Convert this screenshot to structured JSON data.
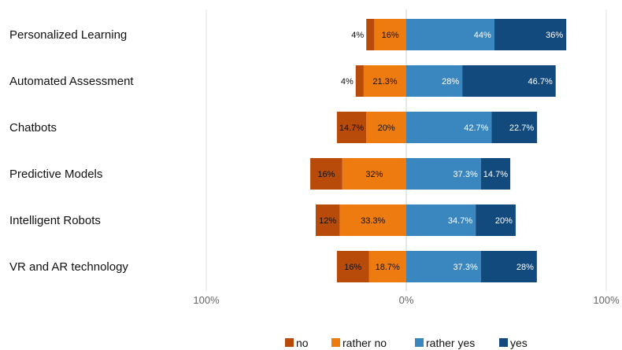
{
  "chart_data": {
    "type": "bar",
    "orientation": "horizontal-diverging",
    "categories": [
      "Personalized Learning",
      "Automated Assessment",
      "Chatbots",
      "Predictive Models",
      "Intelligent Robots",
      "VR and AR technology"
    ],
    "series": [
      {
        "name": "no",
        "side": "negative",
        "color": "#b84a0a",
        "values": [
          4,
          4,
          14.7,
          16,
          12,
          16
        ],
        "labels": [
          "4%",
          "4%",
          "14.7%",
          "16%",
          "12%",
          "16%"
        ]
      },
      {
        "name": "rather no",
        "side": "negative",
        "color": "#ee7b10",
        "values": [
          16,
          21.3,
          20,
          32,
          33.3,
          18.7
        ],
        "labels": [
          "16%",
          "21.3%",
          "20%",
          "32%",
          "33.3%",
          "18.7%"
        ]
      },
      {
        "name": "rather yes",
        "side": "positive",
        "color": "#3a87c0",
        "values": [
          44,
          28,
          42.7,
          37.3,
          34.7,
          37.3
        ],
        "labels": [
          "44%",
          "28%",
          "42.7%",
          "37.3%",
          "34.7%",
          "37.3%"
        ]
      },
      {
        "name": "yes",
        "side": "positive",
        "color": "#124a7e",
        "values": [
          36,
          46.7,
          22.7,
          14.7,
          20,
          28
        ],
        "labels": [
          "36%",
          "46.7%",
          "22.7%",
          "14.7%",
          "20%",
          "28%"
        ]
      }
    ],
    "xlim": [
      -100,
      100
    ],
    "x_ticks": [
      {
        "value": -100,
        "label": "100%"
      },
      {
        "value": 0,
        "label": "0%"
      },
      {
        "value": 100,
        "label": "100%"
      }
    ],
    "title": "",
    "xlabel": "",
    "ylabel": "",
    "grid": true,
    "legend_position": "bottom"
  }
}
